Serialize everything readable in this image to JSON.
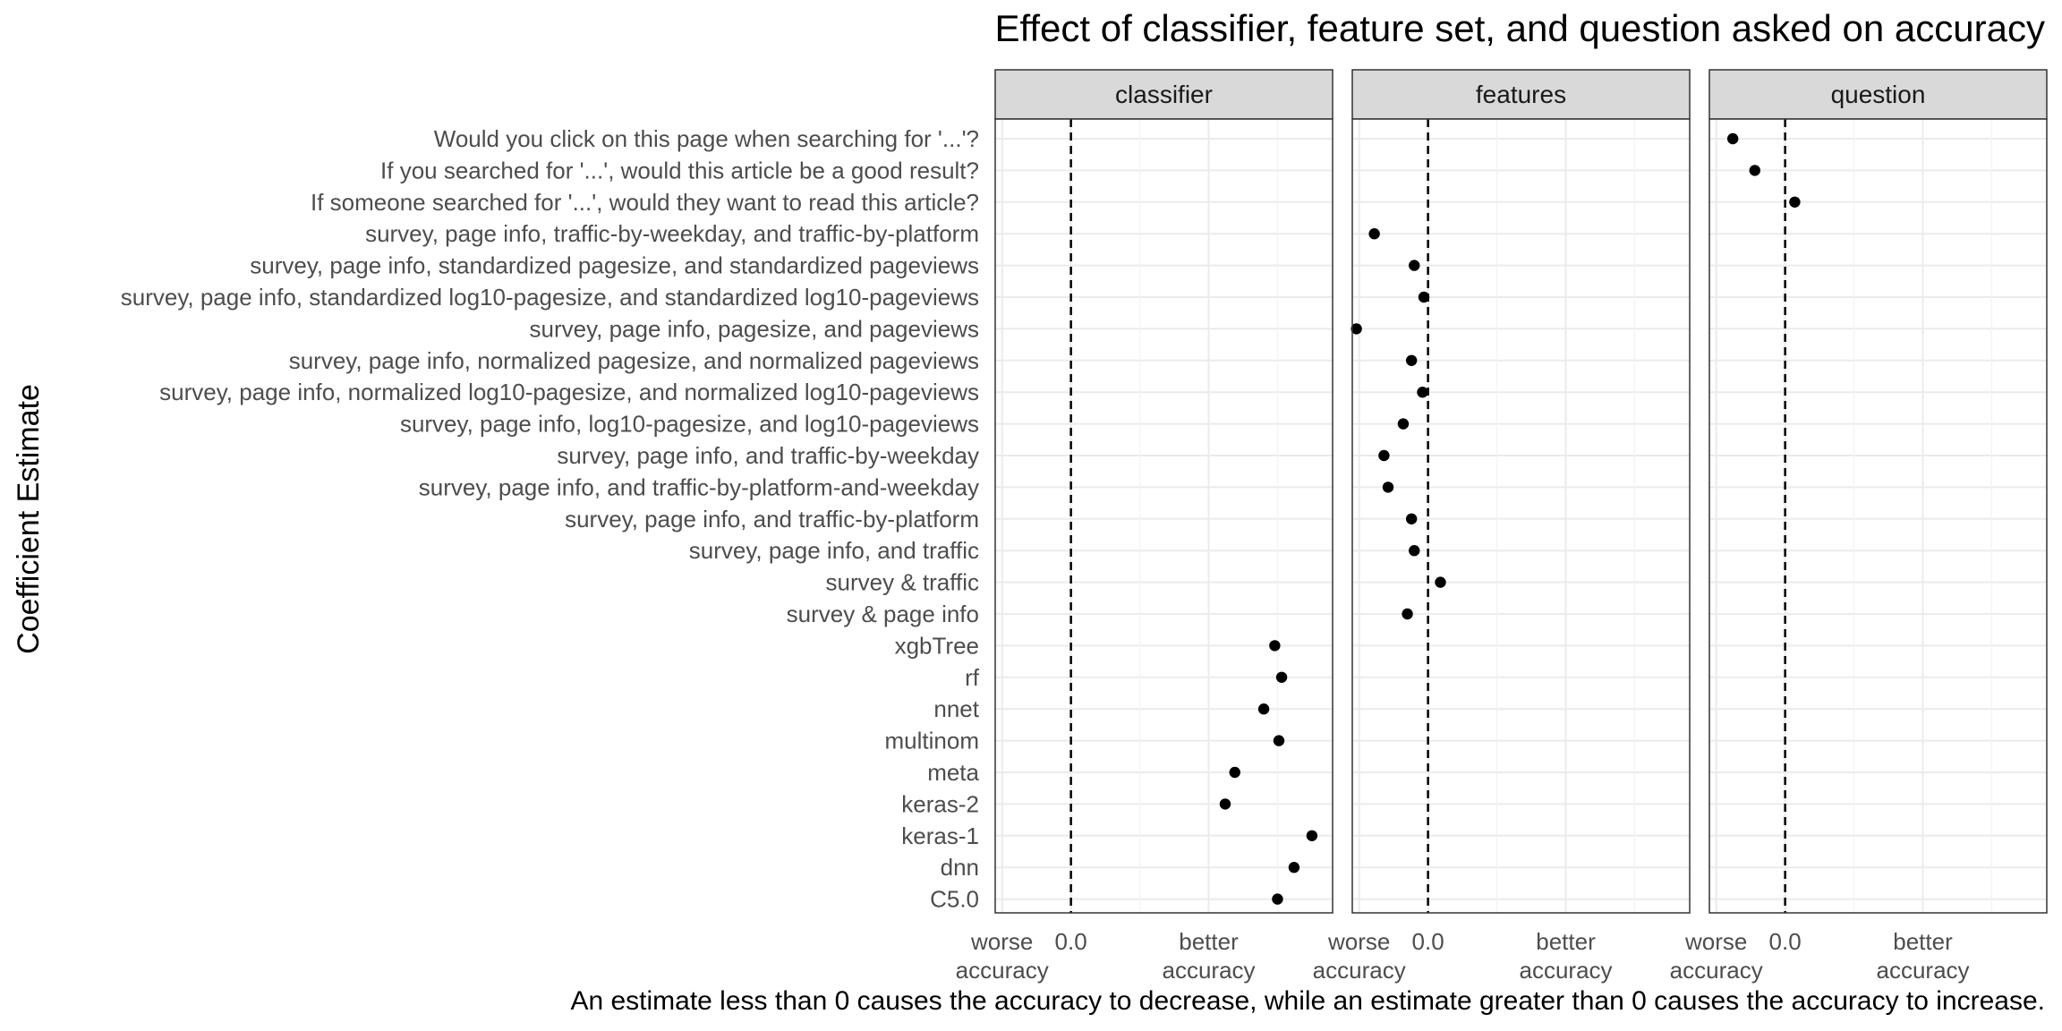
{
  "chart_data": {
    "type": "scatter",
    "title": "Effect of classifier, feature set, and question asked on accuracy",
    "ylabel": "Coefficient Estimate",
    "caption": "An estimate less than 0 causes the accuracy to decrease, while an estimate greater than 0 causes the accuracy to increase.",
    "categories": [
      "Would you click on this page when searching for '...'?",
      "If you searched for '...', would this article be a good result?",
      "If someone searched for '...', would they want to read this article?",
      "survey, page info, traffic-by-weekday, and traffic-by-platform",
      "survey, page info, standardized pagesize, and standardized pageviews",
      "survey, page info, standardized log10-pagesize, and standardized log10-pageviews",
      "survey, page info, pagesize, and pageviews",
      "survey, page info, normalized pagesize, and normalized pageviews",
      "survey, page info, normalized log10-pagesize, and normalized log10-pageviews",
      "survey, page info, log10-pagesize, and log10-pageviews",
      "survey, page info, and traffic-by-weekday",
      "survey, page info, and traffic-by-platform-and-weekday",
      "survey, page info, and traffic-by-platform",
      "survey, page info, and traffic",
      "survey & traffic",
      "survey & page info",
      "xgbTree",
      "rf",
      "nnet",
      "multinom",
      "meta",
      "keras-2",
      "keras-1",
      "dnn",
      "C5.0"
    ],
    "x_range": [
      -0.055,
      0.19
    ],
    "x_ticks": [
      {
        "value": -0.05,
        "label": "worse\naccuracy"
      },
      {
        "value": 0.0,
        "label": "0.0"
      },
      {
        "value": 0.1,
        "label": "better\naccuracy"
      }
    ],
    "reference_line": 0.0,
    "grid": true,
    "legend": "none",
    "panels": [
      {
        "name": "classifier",
        "points": [
          {
            "category": "xgbTree",
            "value": 0.148
          },
          {
            "category": "rf",
            "value": 0.153
          },
          {
            "category": "nnet",
            "value": 0.14
          },
          {
            "category": "multinom",
            "value": 0.151
          },
          {
            "category": "meta",
            "value": 0.119
          },
          {
            "category": "keras-2",
            "value": 0.112
          },
          {
            "category": "keras-1",
            "value": 0.175
          },
          {
            "category": "dnn",
            "value": 0.162
          },
          {
            "category": "C5.0",
            "value": 0.15
          }
        ]
      },
      {
        "name": "features",
        "points": [
          {
            "category": "survey, page info, traffic-by-weekday, and traffic-by-platform",
            "value": -0.039
          },
          {
            "category": "survey, page info, standardized pagesize, and standardized pageviews",
            "value": -0.01
          },
          {
            "category": "survey, page info, standardized log10-pagesize, and standardized log10-pageviews",
            "value": -0.003
          },
          {
            "category": "survey, page info, pagesize, and pageviews",
            "value": -0.052
          },
          {
            "category": "survey, page info, normalized pagesize, and normalized pageviews",
            "value": -0.012
          },
          {
            "category": "survey, page info, normalized log10-pagesize, and normalized log10-pageviews",
            "value": -0.004
          },
          {
            "category": "survey, page info, log10-pagesize, and log10-pageviews",
            "value": -0.018
          },
          {
            "category": "survey, page info, and traffic-by-weekday",
            "value": -0.032
          },
          {
            "category": "survey, page info, and traffic-by-platform-and-weekday",
            "value": -0.029
          },
          {
            "category": "survey, page info, and traffic-by-platform",
            "value": -0.012
          },
          {
            "category": "survey, page info, and traffic",
            "value": -0.01
          },
          {
            "category": "survey & traffic",
            "value": 0.009
          },
          {
            "category": "survey & page info",
            "value": -0.015
          }
        ]
      },
      {
        "name": "question",
        "points": [
          {
            "category": "Would you click on this page when searching for '...'?",
            "value": -0.038
          },
          {
            "category": "If you searched for '...', would this article be a good result?",
            "value": -0.022
          },
          {
            "category": "If someone searched for '...', would they want to read this article?",
            "value": 0.007
          }
        ]
      }
    ]
  }
}
